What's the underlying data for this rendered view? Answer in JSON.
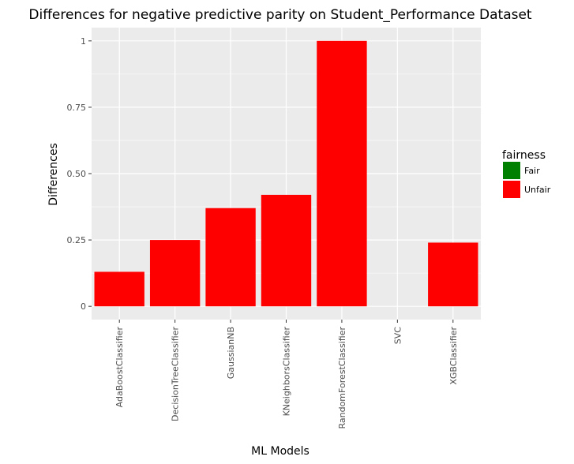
{
  "chart_data": {
    "type": "bar",
    "title": "Differences for negative predictive parity on Student_Performance Dataset",
    "xlabel": "ML Models",
    "ylabel": "Differences",
    "categories": [
      "AdaBoostClassifier",
      "DecisionTreeClassifier",
      "GaussianNB",
      "KNeighborsClassifier",
      "RandomForestClassifier",
      "SVC",
      "XGBClassifier"
    ],
    "values": [
      0.13,
      0.25,
      0.37,
      0.42,
      1.0,
      0,
      0.24
    ],
    "fill": [
      "Unfair",
      "Unfair",
      "Unfair",
      "Unfair",
      "Unfair",
      "Unfair",
      "Unfair"
    ],
    "ylim": [
      -0.05,
      1.05
    ],
    "yticks": [
      0,
      0.25,
      0.5,
      0.75,
      1
    ],
    "ytick_labels": [
      "0",
      "0.25",
      "0.50",
      "0.75",
      "1"
    ],
    "grid": true,
    "legend": {
      "title": "fairness",
      "position": "right",
      "entries": [
        {
          "label": "Fair",
          "color": "#008000"
        },
        {
          "label": "Unfair",
          "color": "#ff0000"
        }
      ]
    },
    "colors": {
      "panel": "#ebebeb",
      "grid": "#ffffff",
      "Unfair": "#ff0000",
      "Fair": "#008000"
    }
  }
}
